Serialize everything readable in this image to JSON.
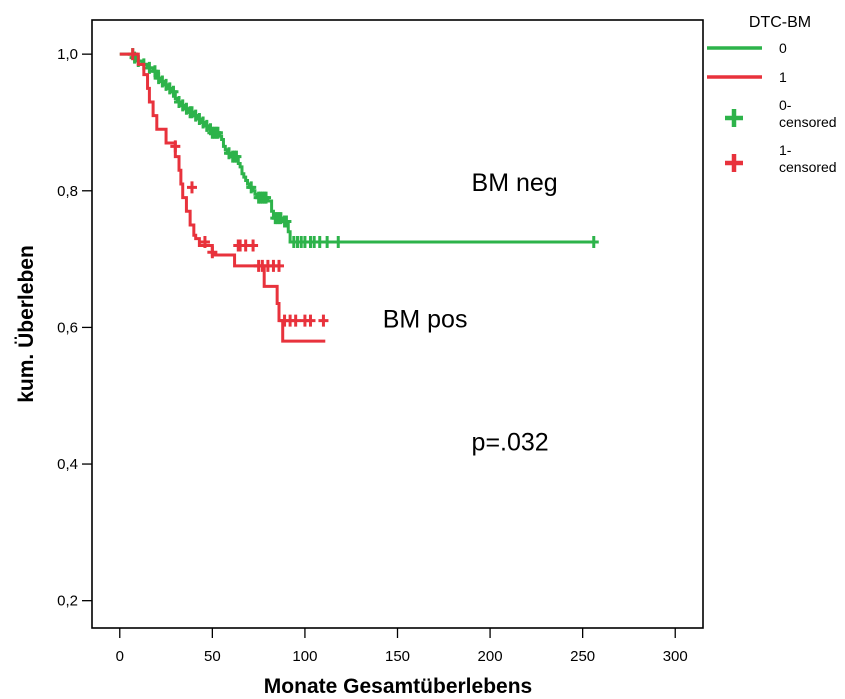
{
  "chart_data": {
    "type": "line",
    "subtype": "kaplan-meier-step",
    "xlabel": "Monate Gesamtüberlebens",
    "ylabel": "kum. Überleben",
    "xlim": [
      -15,
      315
    ],
    "ylim": [
      0.16,
      1.05
    ],
    "xticks": [
      0,
      50,
      100,
      150,
      200,
      250,
      300
    ],
    "xtick_labels": [
      "0",
      "50",
      "100",
      "150",
      "200",
      "250",
      "300"
    ],
    "yticks": [
      0.2,
      0.4,
      0.6,
      0.8,
      1.0
    ],
    "ytick_labels": [
      "0,2",
      "0,4",
      "0,6",
      "0,8",
      "1,0"
    ],
    "grid": false,
    "legend": {
      "title": "DTC-BM",
      "placement": "right-outside-top",
      "entries": [
        {
          "label": "0",
          "kind": "line",
          "color": "#2db34a"
        },
        {
          "label": "1",
          "kind": "line",
          "color": "#e8323c"
        },
        {
          "label": "0-\ncensored",
          "kind": "marker",
          "color": "#2db34a"
        },
        {
          "label": "1-\ncensored",
          "kind": "marker",
          "color": "#e8323c"
        }
      ]
    },
    "annotations": [
      {
        "text": "BM neg",
        "x": 190,
        "y": 0.8
      },
      {
        "text": "BM pos",
        "x": 142,
        "y": 0.6
      },
      {
        "text": "p=.032",
        "x": 190,
        "y": 0.42
      }
    ],
    "series": [
      {
        "name": "0",
        "color": "#2db34a",
        "steps": [
          [
            0,
            1.0
          ],
          [
            9,
            0.99
          ],
          [
            12,
            0.985
          ],
          [
            15,
            0.98
          ],
          [
            18,
            0.975
          ],
          [
            20,
            0.965
          ],
          [
            22,
            0.96
          ],
          [
            24,
            0.955
          ],
          [
            26,
            0.95
          ],
          [
            28,
            0.945
          ],
          [
            30,
            0.935
          ],
          [
            31,
            0.93
          ],
          [
            33,
            0.925
          ],
          [
            35,
            0.92
          ],
          [
            37,
            0.915
          ],
          [
            40,
            0.91
          ],
          [
            42,
            0.905
          ],
          [
            44,
            0.9
          ],
          [
            46,
            0.895
          ],
          [
            48,
            0.89
          ],
          [
            50,
            0.885
          ],
          [
            54,
            0.88
          ],
          [
            55,
            0.875
          ],
          [
            56,
            0.865
          ],
          [
            57,
            0.86
          ],
          [
            58,
            0.855
          ],
          [
            60,
            0.85
          ],
          [
            64,
            0.84
          ],
          [
            65,
            0.835
          ],
          [
            66,
            0.825
          ],
          [
            67,
            0.82
          ],
          [
            68,
            0.815
          ],
          [
            69,
            0.81
          ],
          [
            70,
            0.805
          ],
          [
            72,
            0.8
          ],
          [
            73,
            0.795
          ],
          [
            74,
            0.79
          ],
          [
            80,
            0.785
          ],
          [
            82,
            0.77
          ],
          [
            83,
            0.76
          ],
          [
            88,
            0.755
          ],
          [
            91,
            0.74
          ],
          [
            92,
            0.725
          ],
          [
            256,
            0.725
          ]
        ],
        "censored": [
          [
            7,
            1.0
          ],
          [
            8,
            0.995
          ],
          [
            10,
            0.99
          ],
          [
            13,
            0.985
          ],
          [
            16,
            0.98
          ],
          [
            19,
            0.975
          ],
          [
            21,
            0.965
          ],
          [
            23,
            0.96
          ],
          [
            25,
            0.955
          ],
          [
            27,
            0.95
          ],
          [
            29,
            0.945
          ],
          [
            32,
            0.93
          ],
          [
            34,
            0.925
          ],
          [
            36,
            0.92
          ],
          [
            38,
            0.915
          ],
          [
            39,
            0.915
          ],
          [
            41,
            0.91
          ],
          [
            43,
            0.905
          ],
          [
            45,
            0.9
          ],
          [
            47,
            0.895
          ],
          [
            49,
            0.89
          ],
          [
            50,
            0.885
          ],
          [
            51,
            0.885
          ],
          [
            52,
            0.885
          ],
          [
            53,
            0.885
          ],
          [
            59,
            0.855
          ],
          [
            61,
            0.85
          ],
          [
            62,
            0.85
          ],
          [
            63,
            0.85
          ],
          [
            71,
            0.805
          ],
          [
            75,
            0.79
          ],
          [
            76,
            0.79
          ],
          [
            77,
            0.79
          ],
          [
            78,
            0.79
          ],
          [
            79,
            0.79
          ],
          [
            84,
            0.76
          ],
          [
            85,
            0.76
          ],
          [
            86,
            0.76
          ],
          [
            87,
            0.76
          ],
          [
            89,
            0.755
          ],
          [
            90,
            0.755
          ],
          [
            94,
            0.725
          ],
          [
            96,
            0.725
          ],
          [
            98,
            0.725
          ],
          [
            100,
            0.725
          ],
          [
            103,
            0.725
          ],
          [
            105,
            0.725
          ],
          [
            108,
            0.725
          ],
          [
            112,
            0.725
          ],
          [
            118,
            0.725
          ],
          [
            256,
            0.725
          ]
        ]
      },
      {
        "name": "1",
        "color": "#e8323c",
        "steps": [
          [
            0,
            1.0
          ],
          [
            10,
            0.985
          ],
          [
            13,
            0.97
          ],
          [
            15,
            0.95
          ],
          [
            16,
            0.93
          ],
          [
            18,
            0.91
          ],
          [
            20,
            0.89
          ],
          [
            25,
            0.87
          ],
          [
            30,
            0.85
          ],
          [
            32,
            0.83
          ],
          [
            33,
            0.81
          ],
          [
            34,
            0.79
          ],
          [
            36,
            0.77
          ],
          [
            38,
            0.75
          ],
          [
            40,
            0.735
          ],
          [
            41,
            0.73
          ],
          [
            43,
            0.72
          ],
          [
            50,
            0.706
          ],
          [
            62,
            0.69
          ],
          [
            78,
            0.66
          ],
          [
            85,
            0.635
          ],
          [
            86,
            0.61
          ],
          [
            88,
            0.58
          ],
          [
            111,
            0.58
          ]
        ],
        "censored": [
          [
            7,
            1.0
          ],
          [
            30,
            0.865
          ],
          [
            39,
            0.805
          ],
          [
            46,
            0.725
          ],
          [
            50,
            0.71
          ],
          [
            64,
            0.72
          ],
          [
            65,
            0.72
          ],
          [
            68,
            0.72
          ],
          [
            72,
            0.72
          ],
          [
            75,
            0.69
          ],
          [
            77,
            0.69
          ],
          [
            80,
            0.69
          ],
          [
            83,
            0.69
          ],
          [
            86,
            0.69
          ],
          [
            89,
            0.61
          ],
          [
            92,
            0.61
          ],
          [
            95,
            0.61
          ],
          [
            100,
            0.61
          ],
          [
            103,
            0.61
          ],
          [
            110,
            0.61
          ]
        ]
      }
    ]
  }
}
